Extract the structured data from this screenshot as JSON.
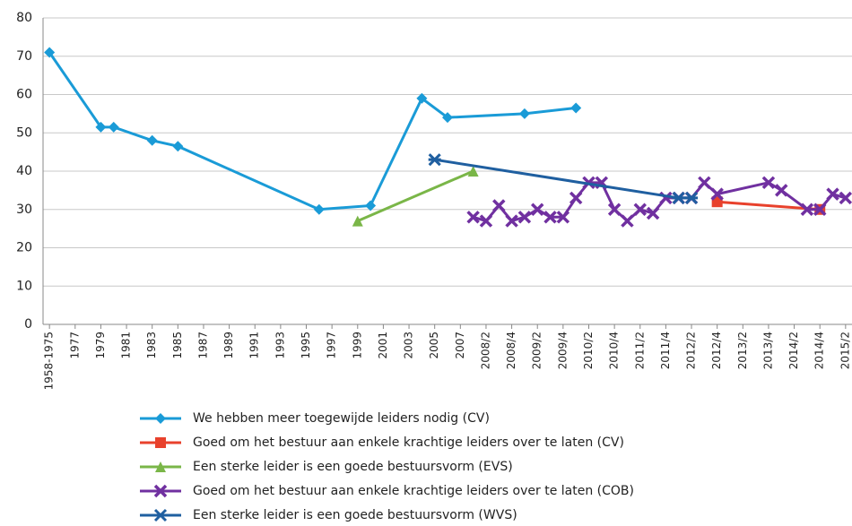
{
  "chart_data": {
    "type": "line",
    "xlim": [
      -0.5,
      62.5
    ],
    "xticks": [
      {
        "value": 0,
        "label": "1958-1975"
      },
      {
        "value": 2,
        "label": "1977"
      },
      {
        "value": 4,
        "label": "1979"
      },
      {
        "value": 6,
        "label": "1981"
      },
      {
        "value": 8,
        "label": "1983"
      },
      {
        "value": 10,
        "label": "1985"
      },
      {
        "value": 12,
        "label": "1987"
      },
      {
        "value": 14,
        "label": "1989"
      },
      {
        "value": 16,
        "label": "1991"
      },
      {
        "value": 18,
        "label": "1993"
      },
      {
        "value": 20,
        "label": "1995"
      },
      {
        "value": 22,
        "label": "1997"
      },
      {
        "value": 24,
        "label": "1999"
      },
      {
        "value": 26,
        "label": "2001"
      },
      {
        "value": 28,
        "label": "2003"
      },
      {
        "value": 30,
        "label": "2005"
      },
      {
        "value": 32,
        "label": "2007"
      },
      {
        "value": 34,
        "label": "2008/2"
      },
      {
        "value": 36,
        "label": "2008/4"
      },
      {
        "value": 38,
        "label": "2009/2"
      },
      {
        "value": 40,
        "label": "2009/4"
      },
      {
        "value": 42,
        "label": "2010/2"
      },
      {
        "value": 44,
        "label": "2010/4"
      },
      {
        "value": 46,
        "label": "2011/2"
      },
      {
        "value": 48,
        "label": "2011/4"
      },
      {
        "value": 50,
        "label": "2012/2"
      },
      {
        "value": 52,
        "label": "2012/4"
      },
      {
        "value": 54,
        "label": "2013/2"
      },
      {
        "value": 56,
        "label": "2013/4"
      },
      {
        "value": 58,
        "label": "2014/2"
      },
      {
        "value": 60,
        "label": "2014/4"
      },
      {
        "value": 62,
        "label": "2015/2"
      }
    ],
    "ylim": [
      0,
      80
    ],
    "yticks": [
      0,
      10,
      20,
      30,
      40,
      50,
      60,
      70,
      80
    ],
    "grid": true,
    "series": [
      {
        "name": "We hebben meer toegewijde leiders nodig (CV)",
        "color": "#1a9bd7",
        "marker": "diamond",
        "x": [
          0,
          4,
          5,
          8,
          10,
          21,
          25,
          29,
          31,
          37,
          41
        ],
        "values": [
          71,
          51.5,
          51.5,
          48,
          46.5,
          30,
          31,
          59,
          54,
          55,
          56.5
        ]
      },
      {
        "name": "Goed om het bestuur aan enkele krachtige leiders over te laten (CV)",
        "color": "#e8412c",
        "marker": "square",
        "x": [
          52,
          60
        ],
        "values": [
          32,
          30
        ]
      },
      {
        "name": "Een sterke leider is een goede bestuursvorm (EVS)",
        "color": "#7ab648",
        "marker": "triangle",
        "x": [
          24,
          33
        ],
        "values": [
          27,
          40
        ]
      },
      {
        "name": "Goed om het bestuur aan enkele krachtige leiders over te laten (COB)",
        "color": "#7030a0",
        "marker": "x",
        "x": [
          33,
          34,
          35,
          36,
          37,
          38,
          39,
          40,
          41,
          42,
          43,
          44,
          45,
          46,
          47,
          48,
          49,
          50,
          51,
          52,
          56,
          57,
          59,
          60,
          61,
          62
        ],
        "values": [
          28,
          27,
          31,
          27,
          28,
          30,
          28,
          28,
          33,
          37,
          37,
          30,
          27,
          30,
          29,
          33,
          33,
          33,
          37,
          34,
          37,
          35,
          30,
          30,
          34,
          33
        ]
      },
      {
        "name": "Een sterke leider is een goede bestuursvorm (WVS)",
        "color": "#1f5fa0",
        "marker": "star",
        "x": [
          30,
          49,
          50
        ],
        "values": [
          43,
          33,
          33
        ]
      }
    ]
  }
}
